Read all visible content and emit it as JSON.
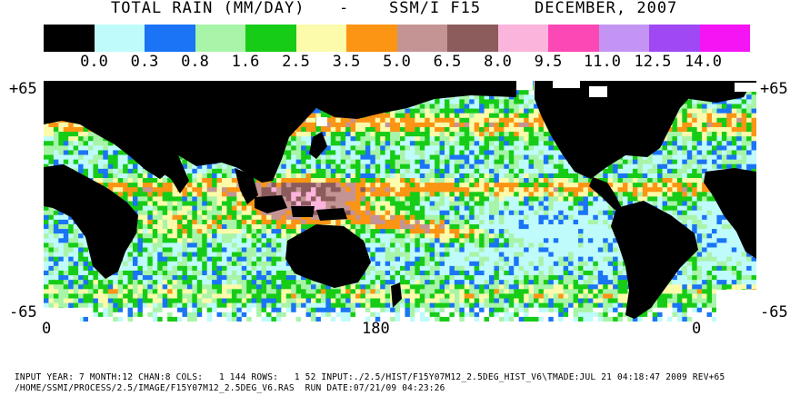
{
  "header": {
    "title_left": "TOTAL RAIN (MM/DAY)",
    "separator": "-",
    "sensor": "SSM/I F15",
    "date": "DECEMBER, 2007"
  },
  "legend": {
    "colors": [
      "#000000",
      "#bffbfb",
      "#1a74f5",
      "#a8f4a8",
      "#17cc17",
      "#fbfbab",
      "#fc9414",
      "#c49494",
      "#8c5c5c",
      "#fbb4dc",
      "#fb48b4",
      "#c494f4",
      "#a048f4",
      "#f414f4"
    ],
    "tick_labels": [
      "0.0",
      "0.3",
      "0.8",
      "1.6",
      "2.5",
      "3.5",
      "5.0",
      "6.5",
      "8.0",
      "9.5",
      "11.0",
      "12.5",
      "14.0"
    ]
  },
  "axes": {
    "lat_top_left": "+65",
    "lat_top_right": "+65",
    "lat_bottom_left": "-65",
    "lat_bottom_right": "-65",
    "lon_labels": [
      "0",
      "180",
      "0"
    ]
  },
  "footer": {
    "line1": "INPUT YEAR: 7 MONTH:12 CHAN:8 COLS:   1 144 ROWS:   1 52 INPUT:./2.5/HIST/F15Y07M12_2.5DEG_HIST_V6\\TMADE:JUL 21 04:18:47 2009 REV+65",
    "line2": "/HOME/SSMI/PROCESS/2.5/IMAGE/F15Y07M12_2.5DEG_V6.RAS  RUN DATE:07/21/09 04:23:26"
  },
  "map_colors": {
    "land": "#000000",
    "no_data": "#ffffff"
  }
}
